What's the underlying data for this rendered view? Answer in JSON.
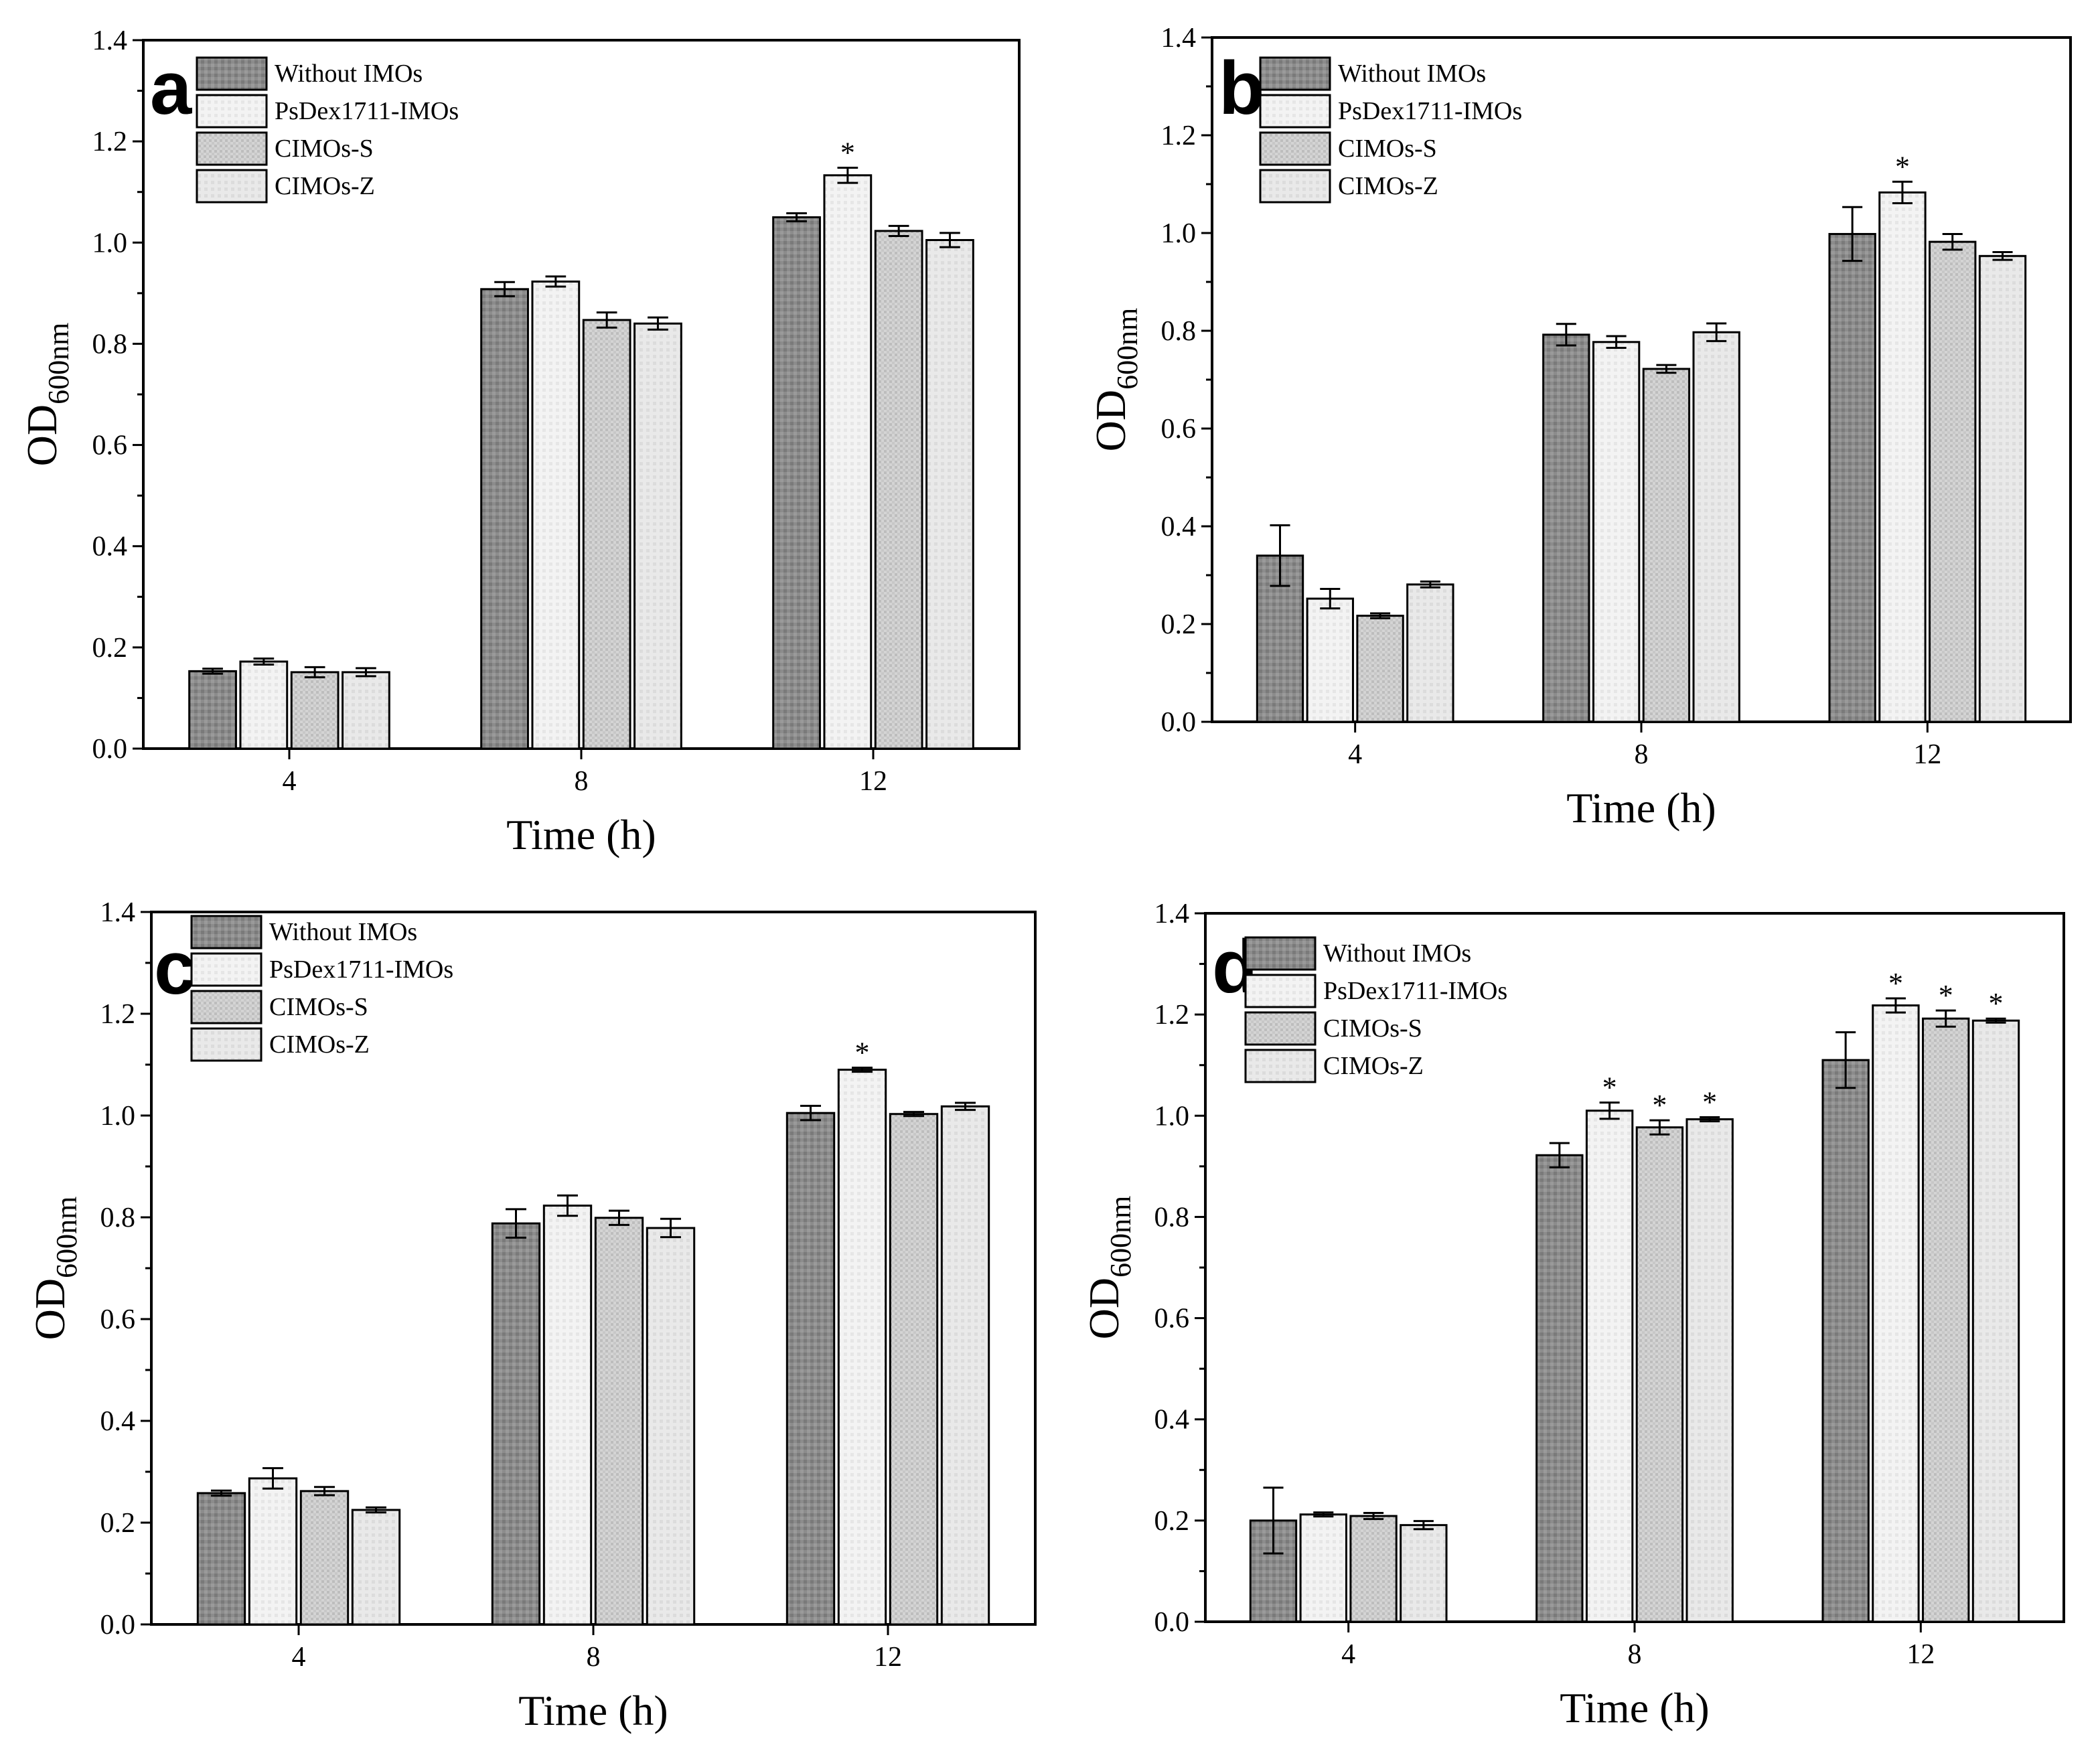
{
  "legend": [
    "Without IMOs",
    "PsDex1711-IMOs",
    "CIMOs-S",
    "CIMOs-Z"
  ],
  "colors": {
    "fills": [
      "#8a8a8a",
      "#f1f1f1",
      "#c9c9c9",
      "#e6e6e6"
    ],
    "axis": "#000000"
  },
  "chart_data": [
    {
      "type": "bar",
      "panel": "a",
      "categories": [
        "4",
        "8",
        "12"
      ],
      "xlabel": "Time (h)",
      "ylabel": "OD",
      "ylabel_sub": "600nm",
      "ylim": [
        0,
        1.4
      ],
      "yticks": [
        "0.0",
        "0.2",
        "0.4",
        "0.6",
        "0.8",
        "1.0",
        "1.2",
        "1.4"
      ],
      "legend_position": "top-left",
      "grid": false,
      "series": [
        {
          "name": "Without IMOs",
          "values": [
            0.153,
            0.908,
            1.05
          ],
          "errors": [
            0.005,
            0.014,
            0.008
          ],
          "stars": [
            false,
            false,
            false
          ]
        },
        {
          "name": "PsDex1711-IMOs",
          "values": [
            0.172,
            0.923,
            1.133
          ],
          "errors": [
            0.006,
            0.01,
            0.015
          ],
          "stars": [
            false,
            false,
            true
          ]
        },
        {
          "name": "CIMOs-S",
          "values": [
            0.151,
            0.847,
            1.023
          ],
          "errors": [
            0.01,
            0.015,
            0.01
          ],
          "stars": [
            false,
            false,
            false
          ]
        },
        {
          "name": "CIMOs-Z",
          "values": [
            0.151,
            0.84,
            1.005
          ],
          "errors": [
            0.008,
            0.012,
            0.014
          ],
          "stars": [
            false,
            false,
            false
          ]
        }
      ],
      "star_symbol": "*"
    },
    {
      "type": "bar",
      "panel": "b",
      "categories": [
        "4",
        "8",
        "12"
      ],
      "xlabel": "Time (h)",
      "ylabel": "OD",
      "ylabel_sub": "600nm",
      "ylim": [
        0,
        1.4
      ],
      "yticks": [
        "0.0",
        "0.2",
        "0.4",
        "0.6",
        "0.8",
        "1.0",
        "1.2",
        "1.4"
      ],
      "legend_position": "top-left",
      "grid": false,
      "series": [
        {
          "name": "Without IMOs",
          "values": [
            0.34,
            0.792,
            0.998
          ],
          "errors": [
            0.062,
            0.022,
            0.055
          ],
          "stars": [
            false,
            false,
            false
          ]
        },
        {
          "name": "PsDex1711-IMOs",
          "values": [
            0.252,
            0.777,
            1.083
          ],
          "errors": [
            0.02,
            0.012,
            0.022
          ],
          "stars": [
            false,
            false,
            true
          ]
        },
        {
          "name": "CIMOs-S",
          "values": [
            0.217,
            0.722,
            0.982
          ],
          "errors": [
            0.005,
            0.008,
            0.016
          ],
          "stars": [
            false,
            false,
            false
          ]
        },
        {
          "name": "CIMOs-Z",
          "values": [
            0.281,
            0.797,
            0.953
          ],
          "errors": [
            0.006,
            0.018,
            0.008
          ],
          "stars": [
            false,
            false,
            false
          ]
        }
      ],
      "star_symbol": "*"
    },
    {
      "type": "bar",
      "panel": "c",
      "categories": [
        "4",
        "8",
        "12"
      ],
      "xlabel": "Time (h)",
      "ylabel": "OD",
      "ylabel_sub": "600nm",
      "ylim": [
        0,
        1.4
      ],
      "yticks": [
        "0.0",
        "0.2",
        "0.4",
        "0.6",
        "0.8",
        "1.0",
        "1.2",
        "1.4"
      ],
      "legend_position": "top-left",
      "grid": false,
      "series": [
        {
          "name": "Without IMOs",
          "values": [
            0.258,
            0.788,
            1.005
          ],
          "errors": [
            0.005,
            0.028,
            0.014
          ],
          "stars": [
            false,
            false,
            false
          ]
        },
        {
          "name": "PsDex1711-IMOs",
          "values": [
            0.287,
            0.823,
            1.09
          ],
          "errors": [
            0.02,
            0.02,
            0.004
          ],
          "stars": [
            false,
            false,
            true
          ]
        },
        {
          "name": "CIMOs-S",
          "values": [
            0.262,
            0.799,
            1.003
          ],
          "errors": [
            0.008,
            0.014,
            0.004
          ],
          "stars": [
            false,
            false,
            false
          ]
        },
        {
          "name": "CIMOs-Z",
          "values": [
            0.225,
            0.779,
            1.018
          ],
          "errors": [
            0.005,
            0.018,
            0.007
          ],
          "stars": [
            false,
            false,
            false
          ]
        }
      ],
      "star_symbol": "*"
    },
    {
      "type": "bar",
      "panel": "d",
      "categories": [
        "4",
        "8",
        "12"
      ],
      "xlabel": "Time (h)",
      "ylabel": "OD",
      "ylabel_sub": "600nm",
      "ylim": [
        0,
        1.4
      ],
      "yticks": [
        "0.0",
        "0.2",
        "0.4",
        "0.6",
        "0.8",
        "1.0",
        "1.2",
        "1.4"
      ],
      "legend_position": "top-left",
      "grid": false,
      "series": [
        {
          "name": "Without IMOs",
          "values": [
            0.2,
            0.922,
            1.11
          ],
          "errors": [
            0.065,
            0.024,
            0.055
          ],
          "stars": [
            false,
            false,
            false
          ]
        },
        {
          "name": "PsDex1711-IMOs",
          "values": [
            0.212,
            1.01,
            1.218
          ],
          "errors": [
            0.004,
            0.016,
            0.014
          ],
          "stars": [
            false,
            true,
            true
          ]
        },
        {
          "name": "CIMOs-S",
          "values": [
            0.209,
            0.977,
            1.192
          ],
          "errors": [
            0.006,
            0.014,
            0.016
          ],
          "stars": [
            false,
            true,
            true
          ]
        },
        {
          "name": "CIMOs-Z",
          "values": [
            0.191,
            0.993,
            1.188
          ],
          "errors": [
            0.008,
            0.004,
            0.004
          ],
          "stars": [
            false,
            true,
            true
          ]
        }
      ],
      "star_symbol": "*"
    }
  ]
}
